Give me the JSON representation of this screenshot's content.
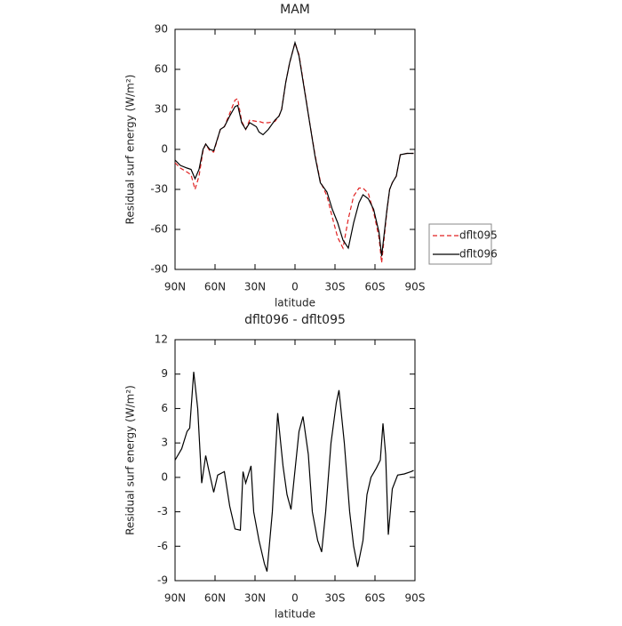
{
  "chart_data": [
    {
      "type": "line",
      "title": "MAM",
      "xlabel": "latitude",
      "ylabel": "Residual surf energy (W/m²)",
      "x": [
        90,
        86,
        81,
        78,
        75,
        72,
        69,
        67,
        64,
        61,
        56,
        53,
        49,
        45,
        43,
        40,
        37,
        34,
        29,
        27,
        24,
        20,
        15,
        12,
        10,
        7,
        4,
        0,
        -3,
        -7,
        -11,
        -15,
        -19,
        -24,
        -28,
        -32,
        -36,
        -40,
        -44,
        -48,
        -51,
        -55,
        -59,
        -63,
        -65,
        -69,
        -71,
        -73,
        -76,
        -79,
        -84,
        -89
      ],
      "series": [
        {
          "name": "dflt095",
          "color": "#e02020",
          "dashed": true,
          "values": [
            -10,
            -14,
            -17,
            -19,
            -30,
            -20,
            -1,
            4,
            -1,
            -2,
            15,
            17,
            27,
            37,
            38,
            21,
            15,
            22,
            21,
            21,
            20,
            20,
            21,
            25,
            30,
            50,
            65,
            80,
            71,
            46,
            20,
            -4,
            -24,
            -35,
            -51,
            -66,
            -74,
            -52,
            -35,
            -29,
            -29,
            -33,
            -47,
            -66,
            -85,
            -46,
            -30,
            -25,
            -20,
            -4,
            -3,
            -3
          ]
        },
        {
          "name": "dflt096",
          "color": "#000000",
          "dashed": false,
          "values": [
            -8,
            -12,
            -14,
            -15,
            -22,
            -15,
            0,
            4,
            0,
            -1,
            15,
            17,
            25,
            32,
            33,
            20,
            15,
            20,
            17,
            13,
            11,
            15,
            22,
            25,
            30,
            50,
            65,
            80,
            70,
            45,
            20,
            -5,
            -25,
            -32,
            -45,
            -55,
            -68,
            -74,
            -55,
            -40,
            -34,
            -37,
            -45,
            -62,
            -80,
            -45,
            -30,
            -25,
            -20,
            -4,
            -3,
            -3
          ]
        }
      ],
      "xlim": [
        90,
        -90
      ],
      "xticks": [
        {
          "value": 90,
          "label": "90N"
        },
        {
          "value": 60,
          "label": "60N"
        },
        {
          "value": 30,
          "label": "30N"
        },
        0,
        {
          "value": -30,
          "label": "30S"
        },
        {
          "value": -60,
          "label": "60S"
        },
        {
          "value": -90,
          "label": "90S"
        }
      ],
      "ylim": [
        -90,
        90
      ],
      "yticks": [
        -90,
        -60,
        -30,
        0,
        30,
        60,
        90
      ],
      "legend": "right"
    },
    {
      "type": "line",
      "title": "dflt096 - dflt095",
      "xlabel": "latitude",
      "ylabel": "Residual surf energy (W/m²)",
      "x": [
        90,
        85,
        81,
        79,
        76,
        73,
        70,
        67,
        65,
        61,
        58,
        53,
        49,
        45,
        41,
        39,
        37,
        33,
        31,
        27,
        23,
        21,
        17,
        13,
        9,
        6,
        3,
        1,
        -3,
        -6,
        -10,
        -13,
        -17,
        -20,
        -23,
        -27,
        -31,
        -33,
        -37,
        -41,
        -44,
        -47,
        -51,
        -54,
        -57,
        -61,
        -64,
        -66,
        -68,
        -70,
        -73,
        -77,
        -82,
        -87,
        -89
      ],
      "series": [
        {
          "color": "#000000",
          "dashed": false,
          "values": [
            1.5,
            2.5,
            4,
            4.3,
            9.2,
            6,
            -0.5,
            1.9,
            0.8,
            -1.3,
            0.2,
            0.5,
            -2.5,
            -4.5,
            -4.6,
            0.5,
            -0.5,
            1,
            -3,
            -5.5,
            -7.5,
            -8.2,
            -3,
            5.6,
            1,
            -1.5,
            -2.8,
            -0.5,
            4,
            5.3,
            2,
            -3,
            -5.5,
            -6.5,
            -3,
            3,
            6.5,
            7.6,
            3,
            -3,
            -6,
            -7.8,
            -5.5,
            -1.5,
            0,
            0.8,
            1.5,
            4.7,
            2,
            -5,
            -1,
            0.2,
            0.3,
            0.5,
            0.6
          ]
        }
      ],
      "xlim": [
        90,
        -90
      ],
      "xticks": [
        {
          "value": 90,
          "label": "90N"
        },
        {
          "value": 60,
          "label": "60N"
        },
        {
          "value": 30,
          "label": "30N"
        },
        0,
        {
          "value": -30,
          "label": "30S"
        },
        {
          "value": -60,
          "label": "60S"
        },
        {
          "value": -90,
          "label": "90S"
        }
      ],
      "ylim": [
        -9,
        12
      ],
      "yticks": [
        -9,
        -6,
        -3,
        0,
        3,
        6,
        9,
        12
      ]
    }
  ]
}
